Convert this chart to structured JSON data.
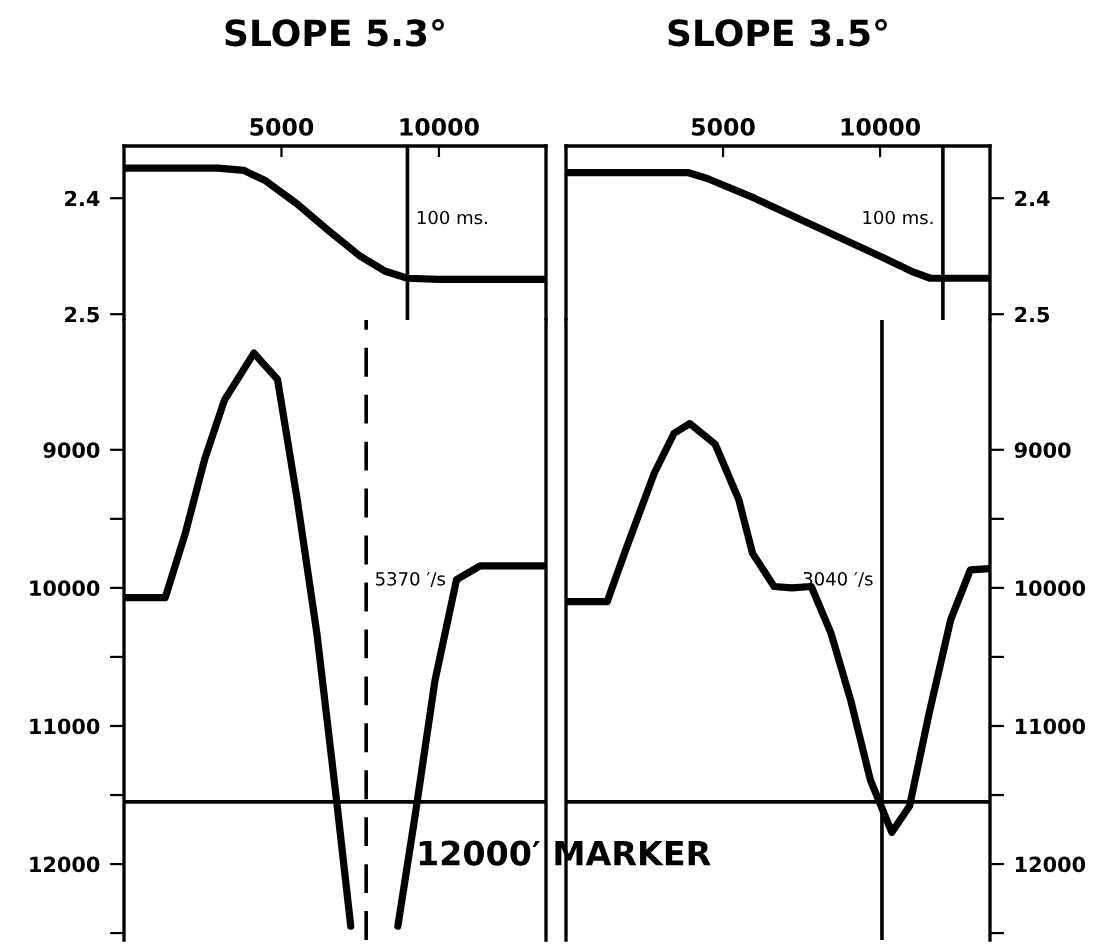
{
  "chart_data": [
    {
      "type": "line",
      "title": "SLOPE 5.3°",
      "xlim": [
        0,
        13400
      ],
      "xticks": [
        5000,
        10000
      ],
      "ylim": [
        2.505,
        2.355
      ],
      "yticks": [
        2.4,
        2.5
      ],
      "line_style": "solid",
      "marker": "none",
      "grid": false,
      "legend": false,
      "series": [
        {
          "color": "#000000",
          "x": [
            0,
            3000,
            3800,
            4500,
            5500,
            6500,
            7500,
            8300,
            9000,
            10000,
            13400
          ],
          "values": [
            2.374,
            2.374,
            2.376,
            2.385,
            2.405,
            2.428,
            2.45,
            2.463,
            2.469,
            2.47,
            2.47
          ]
        }
      ],
      "ref_lines": [
        {
          "axis": "x",
          "value": 9000,
          "label": "100 ms.",
          "color": "#000000",
          "line_style": "solid"
        }
      ]
    },
    {
      "type": "line",
      "xlim": [
        0,
        13400
      ],
      "ylim": [
        12550,
        8060
      ],
      "yticks": [
        9000,
        {
          "value": 9500,
          "label": null
        },
        10000,
        {
          "value": 10500,
          "label": null
        },
        11000,
        {
          "value": 11500,
          "label": null
        },
        12000,
        {
          "value": 12500,
          "label": null
        }
      ],
      "tick_labels": "y",
      "line_style": "solid",
      "marker": "none",
      "grid": false,
      "legend": false,
      "series": [
        {
          "color": "#000000",
          "x": [
            0,
            1310,
            1940,
            2560,
            3190,
            4125,
            4875,
            5500,
            6125,
            6750,
            7200,
            7900,
            8695,
            9250,
            9875,
            10560,
            11310,
            13400
          ],
          "values": [
            10070,
            10070,
            9610,
            9070,
            8640,
            8300,
            8490,
            9360,
            10330,
            11540,
            12450,
            null,
            12450,
            11640,
            10670,
            9940,
            9840,
            9840
          ]
        }
      ],
      "ref_lines": [
        {
          "axis": "x",
          "value": 7690,
          "label": "5370 ′/s",
          "color": "#000000",
          "line_style": "dashed"
        },
        {
          "axis": "y",
          "value": 11550,
          "color": "#000000",
          "line_style": "solid"
        }
      ],
      "annotations": [
        "12000′ MARKER"
      ]
    },
    {
      "type": "line",
      "title": "SLOPE 3.5°",
      "xlim": [
        0,
        13500
      ],
      "xticks": [
        5000,
        10000
      ],
      "ylim": [
        2.505,
        2.355
      ],
      "yticks": [
        2.4,
        2.5
      ],
      "line_style": "solid",
      "marker": "none",
      "grid": false,
      "legend": false,
      "series": [
        {
          "color": "#000000",
          "x": [
            0,
            3900,
            4500,
            6000,
            8000,
            10000,
            11000,
            11600,
            13500
          ],
          "values": [
            2.378,
            2.378,
            2.383,
            2.4,
            2.425,
            2.45,
            2.463,
            2.469,
            2.469
          ]
        }
      ],
      "ref_lines": [
        {
          "axis": "x",
          "value": 12000,
          "label": "100 ms.",
          "color": "#000000",
          "line_style": "solid"
        }
      ]
    },
    {
      "type": "line",
      "xlim": [
        0,
        13500
      ],
      "ylim": [
        12550,
        8060
      ],
      "yticks": [
        9000,
        {
          "value": 9500,
          "label": null
        },
        10000,
        {
          "value": 10500,
          "label": null
        },
        11000,
        {
          "value": 11500,
          "label": null
        },
        12000,
        {
          "value": 12500,
          "label": null
        }
      ],
      "tick_labels": "y",
      "line_style": "solid",
      "marker": "none",
      "grid": false,
      "legend": false,
      "series": [
        {
          "color": "#000000",
          "x": [
            60,
            1310,
            1940,
            2810,
            3440,
            3940,
            4750,
            5500,
            5940,
            6625,
            7190,
            7810,
            8440,
            9060,
            9690,
            10375,
            10940,
            11560,
            12250,
            12875,
            13500
          ],
          "values": [
            10100,
            10100,
            9700,
            9170,
            8880,
            8810,
            8960,
            9360,
            9750,
            9990,
            10000,
            9990,
            10330,
            10810,
            11390,
            11770,
            11580,
            10910,
            10230,
            9870,
            9860
          ]
        }
      ],
      "ref_lines": [
        {
          "axis": "x",
          "value": 10060,
          "label": "3040 ′/s",
          "color": "#000000",
          "line_style": "solid"
        },
        {
          "axis": "y",
          "value": 11550,
          "color": "#000000",
          "line_style": "solid"
        }
      ]
    }
  ]
}
